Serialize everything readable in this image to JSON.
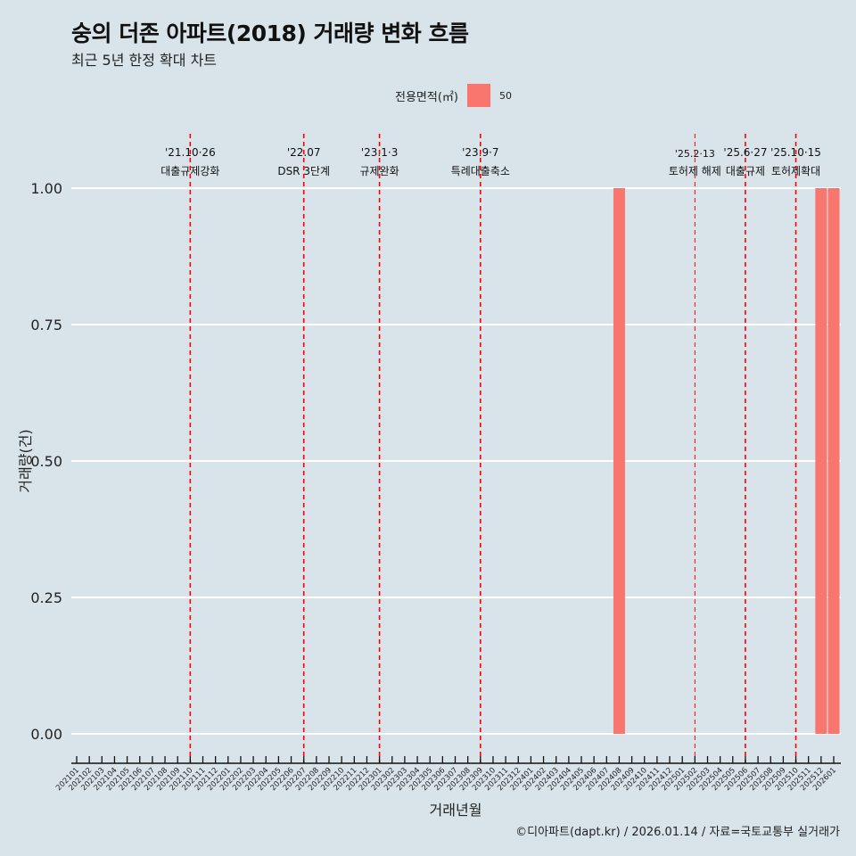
{
  "title": "숭의 더존 아파트(2018) 거래량 변화 흐름",
  "subtitle": "최근 5년 한정 확대 차트",
  "legend": {
    "title": "전용면적(㎡)",
    "entries": [
      "50"
    ]
  },
  "caption": "©디아파트(dapt.kr) / 2026.01.14 / 자료=국토교통부 실거래가",
  "colors": {
    "bar": "#f8766d",
    "event_line": "#ff0000",
    "background": "#d8e4ea",
    "grid": "#ffffff"
  },
  "chart_data": {
    "type": "bar",
    "xlabel": "거래년월",
    "ylabel": "거래량(건)",
    "ylim": [
      0,
      1
    ],
    "yticks": [
      "0.00",
      "0.25",
      "0.50",
      "0.75",
      "1.00"
    ],
    "categories": [
      "202101",
      "202102",
      "202103",
      "202104",
      "202105",
      "202106",
      "202107",
      "202108",
      "202109",
      "202110",
      "202111",
      "202112",
      "202201",
      "202202",
      "202203",
      "202204",
      "202205",
      "202206",
      "202207",
      "202208",
      "202209",
      "202210",
      "202211",
      "202212",
      "202301",
      "202302",
      "202303",
      "202304",
      "202305",
      "202306",
      "202307",
      "202308",
      "202309",
      "202310",
      "202311",
      "202312",
      "202401",
      "202402",
      "202403",
      "202404",
      "202405",
      "202406",
      "202407",
      "202408",
      "202409",
      "202410",
      "202411",
      "202412",
      "202501",
      "202502",
      "202503",
      "202504",
      "202505",
      "202506",
      "202507",
      "202508",
      "202509",
      "202510",
      "202511",
      "202512",
      "202601"
    ],
    "series": [
      {
        "name": "50",
        "bars": [
          {
            "x": "202408",
            "value": 1
          },
          {
            "x": "202512",
            "value": 1
          },
          {
            "x": "202601",
            "value": 1
          }
        ]
      }
    ],
    "events": [
      {
        "x": "202110",
        "date": "'21.10·26",
        "label": "대출규제강화"
      },
      {
        "x": "202207",
        "date": "'22.07",
        "label": "DSR 3단계"
      },
      {
        "x": "202301",
        "date": "'23.1·3",
        "label": "규제완화"
      },
      {
        "x": "202309",
        "date": "'23.9·7",
        "label": "특례대출축소"
      },
      {
        "x": "202502",
        "date": "'25.2·13",
        "label": "토허제 해제",
        "thin": true
      },
      {
        "x": "202506",
        "date": "'25.6·27",
        "label": "대출규제"
      },
      {
        "x": "202510",
        "date": "'25.10·15",
        "label": "토허제확대"
      }
    ]
  }
}
